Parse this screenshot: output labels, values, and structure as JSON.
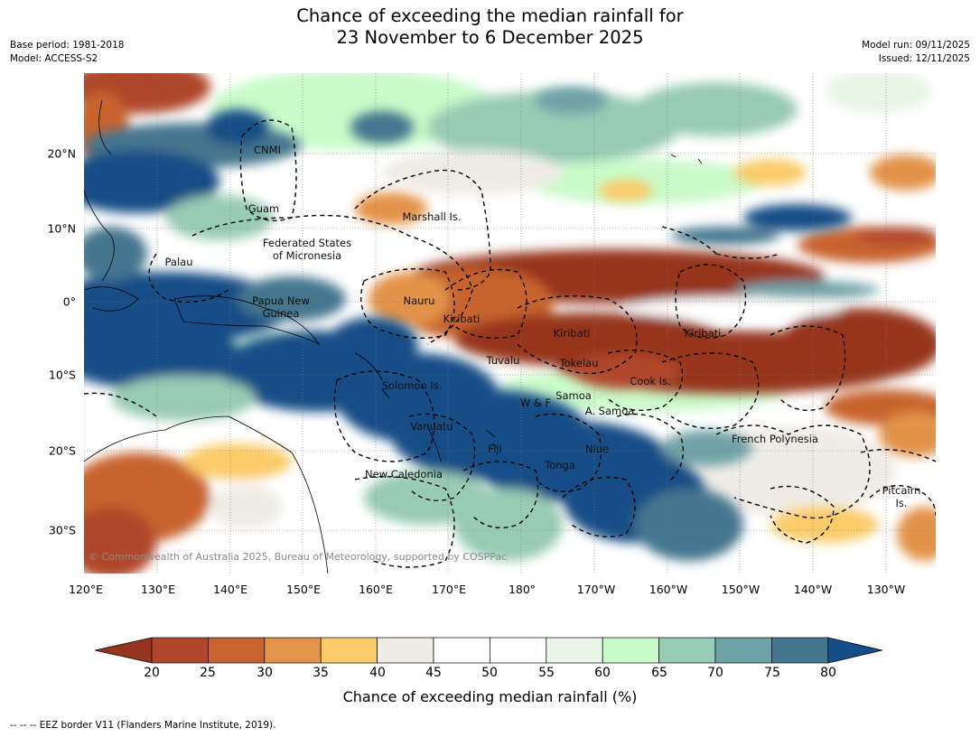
{
  "title_line1": "Chance of exceeding the median rainfall for",
  "title_line2": "23 November to 6 December 2025",
  "meta_left": [
    "Base period: 1981-2018",
    "Model: ACCESS-S2"
  ],
  "meta_right": [
    "Model run: 09/11/2025",
    "Issued: 12/11/2025"
  ],
  "copyright": "© Commonwealth of Australia 2025, Bureau of Meteorology, supported by COSPPac",
  "latitude_labels": [
    "20°N",
    "10°N",
    "0°",
    "10°S",
    "20°S",
    "30°S"
  ],
  "longitude_labels": [
    "120°E",
    "130°E",
    "140°E",
    "150°E",
    "160°E",
    "170°E",
    "180°",
    "170°W",
    "160°W",
    "150°W",
    "140°W",
    "130°W"
  ],
  "regions": [
    "CNMI",
    "Guam",
    "Marshall Is.",
    "Federated States",
    "of Micronesia",
    "Palau",
    "Nauru",
    "Papua New",
    "Guinea",
    "Kiribati",
    "Kiribati",
    "Kiribati",
    "Tuvalu",
    "Tokelau",
    "Cook Is.",
    "Solomon Is.",
    "W & F",
    "Samoa",
    "A. Samoa",
    "Vanuatu",
    "Fiji",
    "Niue",
    "Tonga",
    "New Caledonia",
    "French Polynesia",
    "Pitcairn",
    "Is."
  ],
  "colorbar": {
    "ticks": [
      "20",
      "25",
      "30",
      "35",
      "40",
      "45",
      "50",
      "55",
      "60",
      "65",
      "70",
      "75",
      "80"
    ],
    "colors": [
      "#96351f",
      "#b0472a",
      "#c8642f",
      "#e3934a",
      "#fbcb6a",
      "#efece6",
      "#ffffff",
      "#ffffff",
      "#e8f6e6",
      "#c9fac9",
      "#98cbb4",
      "#6fa2a7",
      "#44768f",
      "#134e86"
    ],
    "label": "Chance of exceeding median rainfall (%)"
  },
  "footnote": "--  --  -- EEZ border V11 (Flanders Marine Institute, 2019)."
}
